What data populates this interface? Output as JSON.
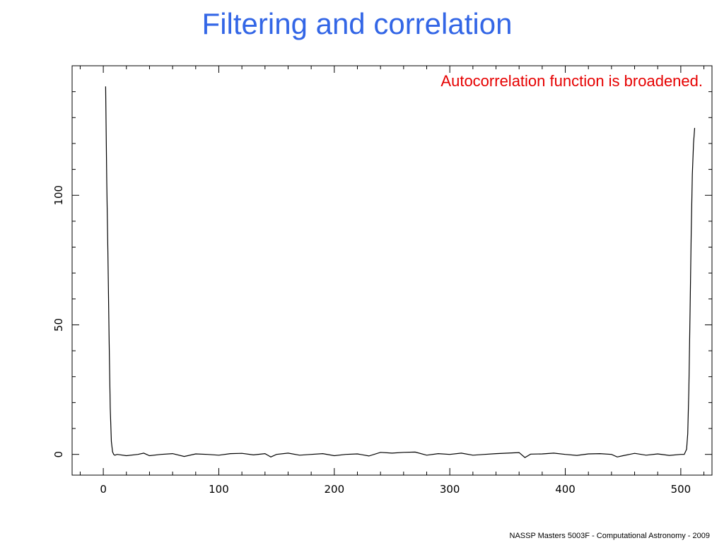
{
  "slide": {
    "title": "Filtering and correlation",
    "annotation": "Autocorrelation function is broadened.",
    "footer": "NASSP Masters 5003F - Computational Astronomy - 2009"
  },
  "colors": {
    "title": "#3366e6",
    "annotation": "#e60000",
    "line": "#000000"
  },
  "chart_data": {
    "type": "line",
    "title": "",
    "xlabel": "",
    "ylabel": "",
    "xlim": [
      -27,
      527
    ],
    "ylim": [
      -8,
      150
    ],
    "xticks": [
      0,
      100,
      200,
      300,
      400,
      500
    ],
    "xtick_labels": [
      "0",
      "100",
      "200",
      "300",
      "400",
      "500"
    ],
    "yticks": [
      0,
      50,
      100
    ],
    "ytick_labels": [
      "0",
      "50",
      "100"
    ],
    "grid": false,
    "series": [
      {
        "x": [
          2,
          3,
          4,
          5,
          6,
          7,
          8,
          9,
          10,
          12,
          20,
          30,
          35,
          40,
          50,
          60,
          70,
          80,
          90,
          100,
          110,
          120,
          130,
          140,
          145,
          150,
          160,
          170,
          180,
          190,
          200,
          210,
          220,
          230,
          240,
          250,
          260,
          270,
          280,
          290,
          300,
          310,
          320,
          330,
          340,
          350,
          360,
          365,
          370,
          380,
          390,
          400,
          410,
          420,
          430,
          440,
          445,
          450,
          460,
          470,
          480,
          490,
          500,
          503,
          505,
          506,
          507,
          508,
          509,
          510,
          511,
          512
        ],
        "y": [
          142,
          105,
          78,
          45,
          18,
          5,
          1,
          0,
          -0.3,
          0,
          -0.5,
          0,
          0.5,
          -0.5,
          0,
          0.3,
          -0.8,
          0.2,
          0,
          -0.3,
          0.3,
          0.4,
          -0.2,
          0.3,
          -1,
          0,
          0.5,
          -0.3,
          0,
          0.3,
          -0.5,
          0,
          0.2,
          -0.6,
          0.8,
          0.5,
          0.8,
          0.9,
          -0.3,
          0.3,
          0,
          0.5,
          -0.3,
          0,
          0.3,
          0.5,
          0.7,
          -1.2,
          0.1,
          0.2,
          0.5,
          0,
          -0.4,
          0.2,
          0.3,
          0,
          -1,
          -0.5,
          0.4,
          -0.3,
          0.2,
          -0.4,
          0,
          0,
          2,
          8,
          25,
          55,
          85,
          108,
          120,
          126
        ]
      }
    ]
  }
}
